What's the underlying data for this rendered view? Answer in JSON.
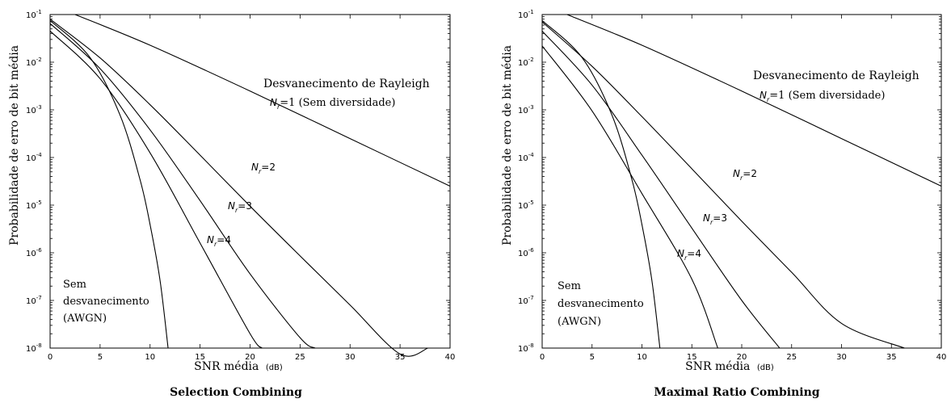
{
  "chart_data": [
    {
      "type": "line",
      "title": "Selection Combining",
      "xlabel": "SNR média",
      "xlabel_unit": "(dB)",
      "ylabel": "Probabilidade de erro de bit média",
      "xlim": [
        0,
        40
      ],
      "ylim": [
        1e-08,
        0.1
      ],
      "yscale": "log",
      "grid": false,
      "x_ticks": [
        "0",
        "5",
        "10",
        "15",
        "20",
        "25",
        "30",
        "35",
        "40"
      ],
      "y_ticks": [
        {
          "base": "10",
          "exp": "-8"
        },
        {
          "base": "10",
          "exp": "-7"
        },
        {
          "base": "10",
          "exp": "-6"
        },
        {
          "base": "10",
          "exp": "-5"
        },
        {
          "base": "10",
          "exp": "-4"
        },
        {
          "base": "10",
          "exp": "-3"
        },
        {
          "base": "10",
          "exp": "-2"
        },
        {
          "base": "10",
          "exp": "-1"
        }
      ],
      "series": [
        {
          "name": "Nr=1",
          "x": [
            2.5,
            10,
            20,
            30,
            40
          ],
          "y": [
            0.1,
            0.0227,
            0.00248,
            0.000249,
            2.5e-05
          ]
        },
        {
          "name": "Nr=2",
          "x": [
            0,
            5,
            10,
            15,
            20,
            25,
            30,
            35,
            37.8
          ],
          "y": [
            0.08,
            0.0123,
            0.00128,
            0.000112,
            9.5e-06,
            8.6e-07,
            8e-08,
            7.5e-09,
            1e-08
          ]
        },
        {
          "name": "Nr=3",
          "x": [
            0,
            5,
            10,
            15,
            20,
            25,
            26.5
          ],
          "y": [
            0.065,
            0.0073,
            0.00038,
            1.24e-05,
            3.6e-07,
            1.65e-08,
            1e-08
          ]
        },
        {
          "name": "Nr=4",
          "x": [
            0,
            5,
            10,
            15,
            20,
            21.2
          ],
          "y": [
            0.045,
            0.0045,
            0.000125,
            1.6e-06,
            2e-08,
            1e-08
          ]
        },
        {
          "name": "AWGN",
          "x": [
            0,
            4,
            7,
            9,
            10,
            11,
            11.8
          ],
          "y": [
            0.075,
            0.0125,
            0.00077,
            3.4e-05,
            3.9e-06,
            2.6e-07,
            1e-08
          ]
        }
      ],
      "annotations": {
        "rayleigh": "Desvanecimento de Rayleigh",
        "nr1_base": "N",
        "nr1_sub": "r",
        "nr1_rest": "=1 (Sem diversidade)",
        "nr_base": "N",
        "nr_sub": "r",
        "nr2_rest": "=2",
        "nr3_rest": "=3",
        "nr4_rest": "=4",
        "awgn_line1": "Sem",
        "awgn_line2": "desvanecimento",
        "awgn_line3": "(AWGN)"
      }
    },
    {
      "type": "line",
      "title": "Maximal Ratio Combining",
      "xlabel": "SNR média",
      "xlabel_unit": "(dB)",
      "ylabel": "Probabilidade de erro de bit média",
      "xlim": [
        0,
        40
      ],
      "ylim": [
        1e-08,
        0.1
      ],
      "yscale": "log",
      "grid": false,
      "x_ticks": [
        "0",
        "5",
        "10",
        "15",
        "20",
        "25",
        "30",
        "35",
        "40"
      ],
      "y_ticks": [
        {
          "base": "10",
          "exp": "-8"
        },
        {
          "base": "10",
          "exp": "-7"
        },
        {
          "base": "10",
          "exp": "-6"
        },
        {
          "base": "10",
          "exp": "-5"
        },
        {
          "base": "10",
          "exp": "-4"
        },
        {
          "base": "10",
          "exp": "-3"
        },
        {
          "base": "10",
          "exp": "-2"
        },
        {
          "base": "10",
          "exp": "-1"
        }
      ],
      "series": [
        {
          "name": "Nr=1",
          "x": [
            2.5,
            10,
            20,
            30,
            40
          ],
          "y": [
            0.1,
            0.0227,
            0.00248,
            0.000249,
            2.5e-05
          ]
        },
        {
          "name": "Nr=2",
          "x": [
            0,
            5,
            10,
            15,
            20,
            25,
            30,
            36.3
          ],
          "y": [
            0.07,
            0.0082,
            0.00072,
            5.8e-05,
            4.6e-06,
            3.9e-07,
            3.3e-08,
            1e-08
          ]
        },
        {
          "name": "Nr=3",
          "x": [
            0,
            5,
            10,
            15,
            20,
            23.8
          ],
          "y": [
            0.045,
            0.0033,
            0.000112,
            3.3e-06,
            1e-07,
            1e-08
          ]
        },
        {
          "name": "Nr=4",
          "x": [
            0,
            5,
            10,
            15,
            17.6
          ],
          "y": [
            0.022,
            0.00095,
            1.75e-05,
            2.8e-07,
            1e-08
          ]
        },
        {
          "name": "AWGN",
          "x": [
            0,
            4,
            7,
            9,
            10,
            11,
            11.8
          ],
          "y": [
            0.075,
            0.0125,
            0.00077,
            3.4e-05,
            3.9e-06,
            2.6e-07,
            1e-08
          ]
        }
      ],
      "annotations": {
        "rayleigh": "Desvanecimento de Rayleigh",
        "nr1_base": "N",
        "nr1_sub": "r",
        "nr1_rest": "=1 (Sem diversidade)",
        "nr_base": "N",
        "nr_sub": "r",
        "nr2_rest": "=2",
        "nr3_rest": "=3",
        "nr4_rest": "=4",
        "awgn_line1": "Sem",
        "awgn_line2": "desvanecimento",
        "awgn_line3": "(AWGN)"
      }
    }
  ]
}
